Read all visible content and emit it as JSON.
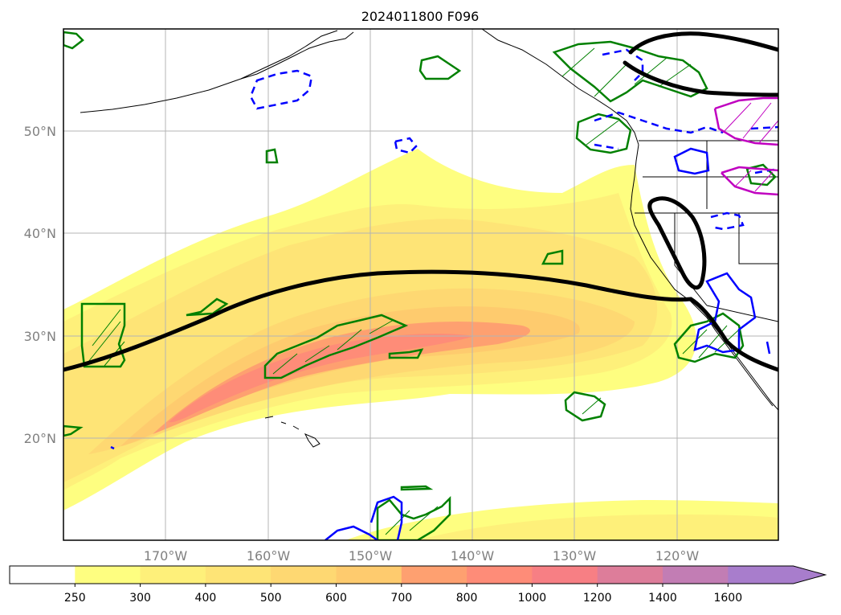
{
  "title": "2024011800 F096",
  "lon_labels": [
    "170°W",
    "160°W",
    "150°W",
    "140°W",
    "130°W",
    "120°W"
  ],
  "lat_labels": [
    "50°N",
    "40°N",
    "30°N",
    "20°N"
  ],
  "colorbar": {
    "levels": [
      "250",
      "300",
      "400",
      "500",
      "600",
      "700",
      "800",
      "1000",
      "1200",
      "1400",
      "1600"
    ],
    "colors": [
      "#fefe80",
      "#fef07a",
      "#fee476",
      "#fed872",
      "#fecb6e",
      "#fea070",
      "#fe8c78",
      "#f77f84",
      "#dd7d9a",
      "#c27db4",
      "#a87dcc"
    ],
    "extend": "max"
  },
  "contours": {
    "black": "#000000",
    "green": "#008000",
    "blue": "#0000ff",
    "magenta": "#c000c0"
  }
}
